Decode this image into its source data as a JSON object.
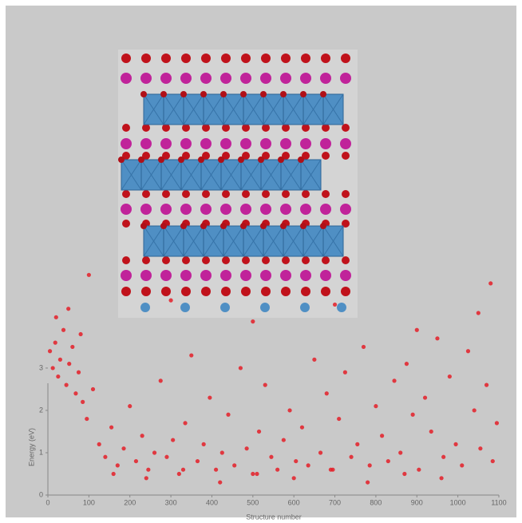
{
  "chart_data": {
    "type": "scatter",
    "x_label": "Structure number",
    "y_label": "Energy (eV)",
    "color": "#e41f28",
    "xlim": [
      0,
      1100
    ],
    "xticks": [
      0,
      100,
      200,
      300,
      400,
      500,
      600,
      700,
      800,
      900,
      1000,
      1100
    ],
    "ylim": [
      0,
      5.3
    ],
    "yticks": [
      0,
      1,
      2,
      3
    ],
    "x": [
      5,
      12,
      18,
      25,
      30,
      38,
      45,
      52,
      60,
      68,
      75,
      85,
      95,
      110,
      125,
      140,
      155,
      170,
      185,
      200,
      215,
      230,
      245,
      260,
      275,
      290,
      305,
      320,
      335,
      350,
      365,
      380,
      395,
      410,
      425,
      440,
      455,
      470,
      485,
      500,
      515,
      530,
      545,
      560,
      575,
      590,
      605,
      620,
      635,
      650,
      665,
      680,
      695,
      710,
      725,
      740,
      755,
      770,
      785,
      800,
      815,
      830,
      845,
      860,
      875,
      890,
      905,
      920,
      935,
      950,
      965,
      980,
      995,
      1010,
      1025,
      1040,
      1055,
      1070,
      1085,
      1095,
      20,
      50,
      80,
      160,
      240,
      330,
      420,
      510,
      600,
      690,
      780,
      870,
      960,
      1050,
      100,
      300,
      500,
      700,
      900,
      1080
    ],
    "y": [
      3.4,
      3.0,
      3.6,
      2.8,
      3.2,
      3.9,
      2.6,
      3.1,
      3.5,
      2.4,
      2.9,
      2.2,
      1.8,
      2.5,
      1.2,
      0.9,
      1.6,
      0.7,
      1.1,
      2.1,
      0.8,
      1.4,
      0.6,
      1.0,
      2.7,
      0.9,
      1.3,
      0.5,
      1.7,
      3.3,
      0.8,
      1.2,
      2.3,
      0.6,
      1.0,
      1.9,
      0.7,
      3.0,
      1.1,
      0.5,
      1.5,
      2.6,
      0.9,
      0.6,
      1.3,
      2.0,
      0.8,
      1.6,
      0.7,
      3.2,
      1.0,
      2.4,
      0.6,
      1.8,
      2.9,
      0.9,
      1.2,
      3.5,
      0.7,
      2.1,
      1.4,
      0.8,
      2.7,
      1.0,
      3.1,
      1.9,
      0.6,
      2.3,
      1.5,
      3.7,
      0.9,
      2.8,
      1.2,
      0.7,
      3.4,
      2.0,
      1.1,
      2.6,
      0.8,
      1.7,
      4.2,
      4.4,
      3.8,
      0.5,
      0.4,
      0.6,
      0.3,
      0.5,
      0.4,
      0.6,
      0.3,
      0.5,
      0.4,
      4.3,
      5.2,
      4.6,
      4.1,
      4.5,
      3.9,
      5.0
    ]
  }
}
